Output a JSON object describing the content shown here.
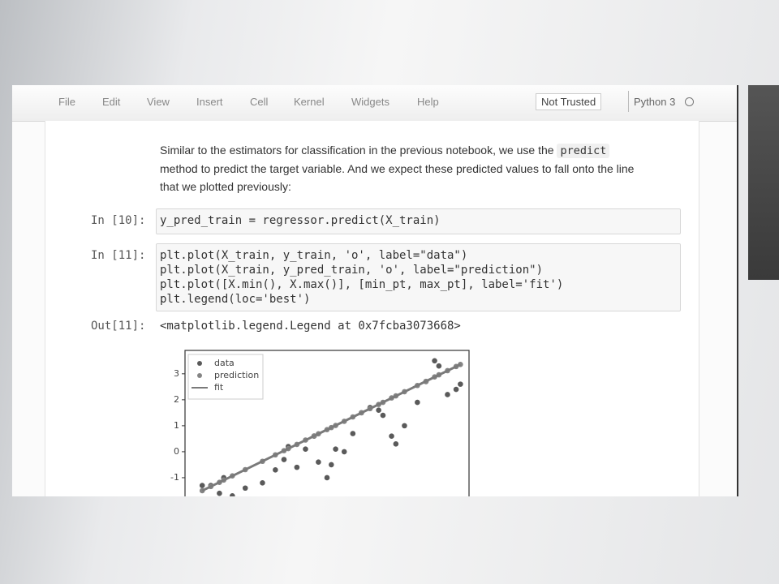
{
  "menu": {
    "items": [
      "File",
      "Edit",
      "View",
      "Insert",
      "Cell",
      "Kernel",
      "Widgets",
      "Help"
    ],
    "trust": "Not Trusted",
    "kernel": "Python 3"
  },
  "markdown": {
    "line1": "Similar to the estimators for classification in the previous notebook, we use the",
    "code": "predict",
    "line2": "method to predict the target variable. And we expect these predicted values to fall onto the line",
    "line3": "that we plotted previously:"
  },
  "cells": [
    {
      "prompt": "In [10]:",
      "lines": [
        "y_pred_train = regressor.predict(X_train)"
      ]
    },
    {
      "prompt": "In [11]:",
      "lines": [
        "plt.plot(X_train, y_train, 'o', label=\"data\")",
        "plt.plot(X_train, y_pred_train, 'o', label=\"prediction\")",
        "plt.plot([X.min(), X.max()], [min_pt, max_pt], label='fit')",
        "plt.legend(loc='best')"
      ]
    }
  ],
  "output": {
    "prompt": "Out[11]:",
    "text": "<matplotlib.legend.Legend at 0x7fcba3073668>"
  },
  "chart_data": {
    "type": "scatter",
    "legend": "upper left",
    "x": [
      -2.9,
      -2.7,
      -2.5,
      -2.4,
      -2.2,
      -1.9,
      -1.5,
      -1.2,
      -1.0,
      -0.9,
      -0.7,
      -0.5,
      -0.3,
      -0.2,
      0.0,
      0.1,
      0.2,
      0.4,
      0.6,
      0.8,
      1.0,
      1.2,
      1.3,
      1.5,
      1.6,
      1.8,
      2.1,
      2.3,
      2.5,
      2.6,
      2.8,
      3.0,
      3.1
    ],
    "xlim": [
      -3.3,
      3.3
    ],
    "ylim": [
      -1.72,
      3.9
    ],
    "yticks": [
      -1,
      0,
      1,
      2,
      3
    ],
    "series": [
      {
        "name": "data",
        "mode": "markers",
        "color": "#5a5a5a",
        "values": [
          -1.3,
          -1.3,
          -1.6,
          -1.0,
          -1.7,
          -1.4,
          -1.2,
          -0.7,
          -0.3,
          0.2,
          -0.6,
          0.1,
          0.6,
          -0.4,
          -1.0,
          -0.5,
          0.1,
          0.0,
          0.7,
          1.5,
          1.7,
          1.6,
          1.4,
          0.6,
          0.3,
          1.0,
          1.9,
          2.7,
          3.5,
          3.3,
          2.2,
          2.4,
          2.6
        ]
      },
      {
        "name": "prediction",
        "mode": "markers",
        "color": "#858585",
        "values": [
          -1.5,
          -1.34,
          -1.18,
          -1.09,
          -0.93,
          -0.69,
          -0.37,
          -0.12,
          0.04,
          0.12,
          0.28,
          0.45,
          0.61,
          0.69,
          0.85,
          0.93,
          1.01,
          1.17,
          1.34,
          1.5,
          1.66,
          1.82,
          1.9,
          2.07,
          2.15,
          2.31,
          2.55,
          2.71,
          2.88,
          2.96,
          3.12,
          3.28,
          3.36
        ]
      },
      {
        "name": "fit",
        "mode": "line",
        "color": "#7a7a7a",
        "x": [
          -2.9,
          3.1
        ],
        "values": [
          -1.5,
          3.36
        ]
      }
    ]
  }
}
